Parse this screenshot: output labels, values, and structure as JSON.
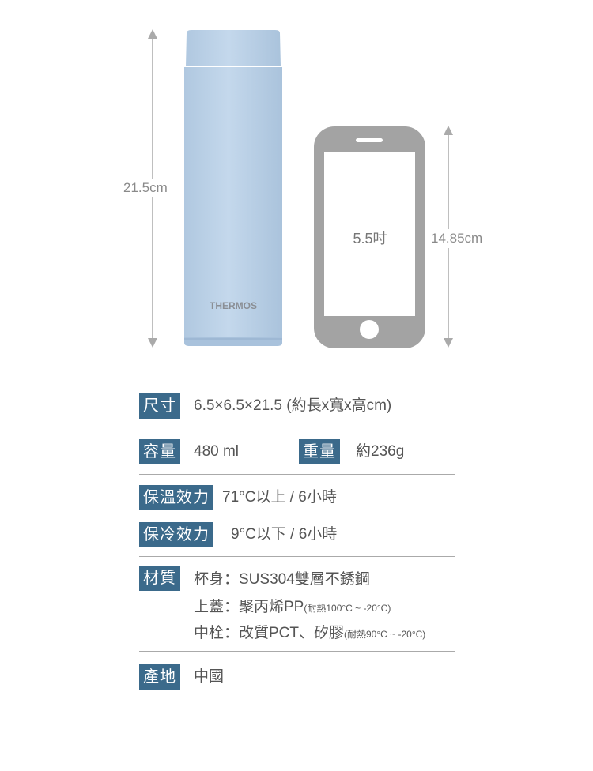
{
  "illustration": {
    "bottle_height_label": "21.5cm",
    "bottle_brand": "THERMOS",
    "bottle_color": "#b9d0e6",
    "phone_size_label": "5.5吋",
    "phone_height_label": "14.85cm",
    "phone_color": "#a3a3a3"
  },
  "specs": {
    "badge_color": "#3b6a8b",
    "size": {
      "label": "尺寸",
      "value": "6.5×6.5×21.5 (約長x寬x高cm)"
    },
    "capacity": {
      "label": "容量",
      "value": "480 ml"
    },
    "weight": {
      "label": "重量",
      "value": "約236g"
    },
    "heat_retention": {
      "label": "保溫效力",
      "value": "71°C以上 / 6小時"
    },
    "cold_retention": {
      "label": "保冷效力",
      "value": "9°C以下 / 6小時"
    },
    "material": {
      "label": "材質",
      "lines": [
        {
          "text": "杯身：SUS304雙層不銹鋼",
          "note": ""
        },
        {
          "text": "上蓋：聚丙烯PP",
          "note": "(耐熱100°C ~ -20°C)"
        },
        {
          "text": "中栓：改質PCT、矽膠",
          "note": "(耐熱90°C ~ -20°C)"
        }
      ]
    },
    "origin": {
      "label": "產地",
      "value": "中國"
    }
  }
}
